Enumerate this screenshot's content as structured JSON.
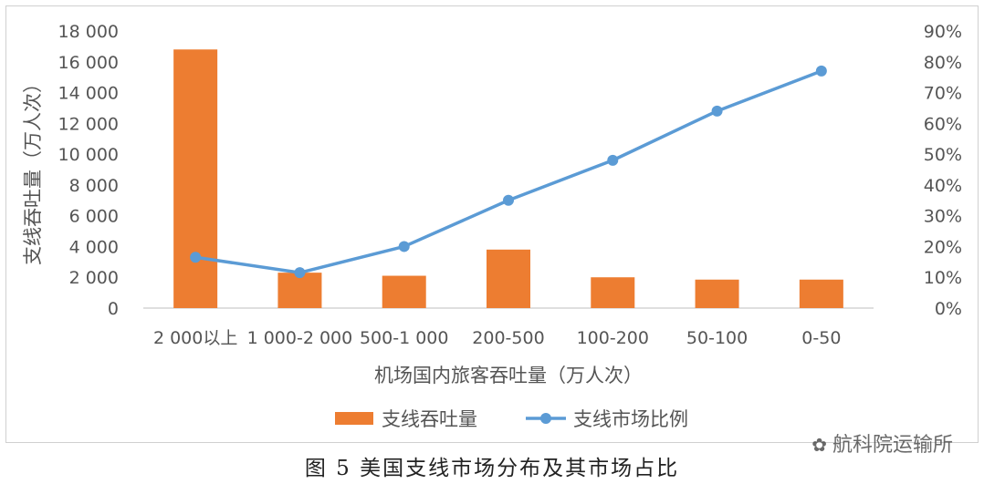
{
  "caption": "图 5 美国支线市场分布及其市场占比",
  "watermark": "航科院运输所",
  "colors": {
    "bar": "#ED7D31",
    "line": "#5B9BD5",
    "text": "#555555",
    "grid": "#e0e0e0"
  },
  "chart_data": {
    "type": "bar+line",
    "categories": [
      "2 000以上",
      "1 000-2 000",
      "500-1 000",
      "200-500",
      "100-200",
      "50-100",
      "0-50"
    ],
    "xlabel": "机场国内旅客吞吐量（万人次）",
    "ylabel": "支线吞吐量（万人次）",
    "y_left": {
      "min": 0,
      "max": 18000,
      "step": 2000,
      "tick_labels": [
        "0",
        "2 000",
        "4 000",
        "6 000",
        "8 000",
        "10 000",
        "12 000",
        "14 000",
        "16 000",
        "18 000"
      ]
    },
    "y_right": {
      "min": 0,
      "max": 0.9,
      "step": 0.1,
      "tick_labels": [
        "0%",
        "10%",
        "20%",
        "30%",
        "40%",
        "50%",
        "60%",
        "70%",
        "80%",
        "90%"
      ]
    },
    "series": [
      {
        "name": "支线吞吐量",
        "type": "bar",
        "axis": "left",
        "values": [
          16800,
          2300,
          2100,
          3800,
          2000,
          1850,
          1850
        ]
      },
      {
        "name": "支线市场比例",
        "type": "line",
        "axis": "right",
        "values": [
          0.165,
          0.115,
          0.2,
          0.35,
          0.48,
          0.64,
          0.77
        ]
      }
    ],
    "legend": "bottom",
    "grid": false
  }
}
